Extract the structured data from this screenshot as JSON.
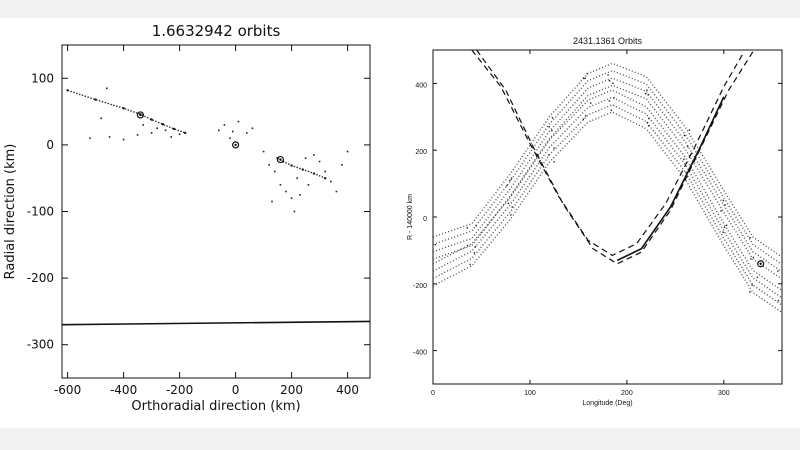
{
  "chart_data": [
    {
      "type": "scatter",
      "title": "1.6632942 orbits",
      "xlabel": "Orthoradial direction (km)",
      "ylabel": "Radial direction (km)",
      "xlim": [
        -620,
        480
      ],
      "ylim": [
        -350,
        150
      ],
      "xticks": [
        -600,
        -400,
        -200,
        0,
        200,
        400
      ],
      "yticks": [
        -300,
        -200,
        -100,
        0,
        100
      ],
      "grid": false,
      "series": [
        {
          "kind": "streak",
          "points": [
            [
              -600,
              82
            ],
            [
              -500,
              68
            ],
            [
              -400,
              55
            ],
            [
              -340,
              46
            ],
            [
              -300,
              38
            ],
            [
              -260,
              31
            ],
            [
              -220,
              24
            ],
            [
              -180,
              18
            ]
          ]
        },
        {
          "kind": "streak",
          "points": [
            [
              150,
              -20
            ],
            [
              170,
              -25
            ],
            [
              200,
              -31
            ],
            [
              240,
              -37
            ],
            [
              280,
              -43
            ],
            [
              320,
              -50
            ]
          ]
        },
        {
          "kind": "scatter",
          "points": [
            [
              -520,
              10
            ],
            [
              -450,
              12
            ],
            [
              -400,
              8
            ],
            [
              -350,
              15
            ],
            [
              -300,
              18
            ],
            [
              -250,
              22
            ],
            [
              -200,
              16
            ],
            [
              -330,
              30
            ],
            [
              -280,
              25
            ],
            [
              -230,
              12
            ],
            [
              -60,
              22
            ],
            [
              -40,
              30
            ],
            [
              10,
              35
            ],
            [
              -20,
              10
            ],
            [
              40,
              18
            ],
            [
              60,
              25
            ],
            [
              -10,
              20
            ],
            [
              100,
              -10
            ],
            [
              120,
              -30
            ],
            [
              140,
              -40
            ],
            [
              160,
              -60
            ],
            [
              180,
              -70
            ],
            [
              200,
              -80
            ],
            [
              220,
              -50
            ],
            [
              250,
              -20
            ],
            [
              280,
              -15
            ],
            [
              300,
              -25
            ],
            [
              320,
              -40
            ],
            [
              340,
              -55
            ],
            [
              360,
              -70
            ],
            [
              380,
              -30
            ],
            [
              400,
              -10
            ],
            [
              260,
              -60
            ],
            [
              230,
              -75
            ],
            [
              210,
              -100
            ],
            [
              130,
              -85
            ],
            [
              -460,
              85
            ],
            [
              -480,
              40
            ]
          ]
        },
        {
          "kind": "line",
          "points": [
            [
              -620,
              -270
            ],
            [
              480,
              -265
            ]
          ]
        }
      ],
      "markers": [
        [
          0,
          0
        ],
        [
          -340,
          45
        ],
        [
          160,
          -22
        ]
      ]
    },
    {
      "type": "scatter",
      "title": "2431.1361 Orbits",
      "xlabel": "Longitude (Deg)",
      "ylabel": "R - 140000 km",
      "xlim": [
        0,
        360
      ],
      "ylim": [
        -500,
        500
      ],
      "xticks": [
        0,
        100,
        200,
        300
      ],
      "yticks": [
        -400,
        -200,
        0,
        200,
        400
      ],
      "grid": false,
      "series": [
        {
          "kind": "dashed",
          "points": [
            [
              40,
              500
            ],
            [
              70,
              390
            ],
            [
              100,
              220
            ],
            [
              130,
              60
            ],
            [
              160,
              -70
            ],
            [
              185,
              -115
            ],
            [
              210,
              -80
            ],
            [
              240,
              40
            ],
            [
              270,
              210
            ],
            [
              300,
              390
            ],
            [
              320,
              490
            ]
          ]
        },
        {
          "kind": "dashed",
          "points": [
            [
              45,
              500
            ],
            [
              75,
              380
            ],
            [
              105,
              200
            ],
            [
              135,
              35
            ],
            [
              165,
              -95
            ],
            [
              190,
              -140
            ],
            [
              215,
              -105
            ],
            [
              245,
              20
            ],
            [
              275,
              200
            ],
            [
              305,
              380
            ],
            [
              330,
              495
            ]
          ]
        },
        {
          "kind": "solid",
          "points": [
            [
              190,
              -130
            ],
            [
              215,
              -95
            ],
            [
              245,
              30
            ],
            [
              275,
              205
            ],
            [
              300,
              360
            ]
          ]
        },
        {
          "kind": "band",
          "points": [
            [
              0,
              -60
            ],
            [
              40,
              -20
            ],
            [
              80,
              130
            ],
            [
              120,
              300
            ],
            [
              160,
              430
            ],
            [
              185,
              460
            ],
            [
              220,
              420
            ],
            [
              260,
              270
            ],
            [
              300,
              80
            ],
            [
              330,
              -60
            ],
            [
              360,
              -120
            ]
          ]
        },
        {
          "kind": "band",
          "points": [
            [
              0,
              -140
            ],
            [
              40,
              -80
            ],
            [
              80,
              60
            ],
            [
              120,
              230
            ],
            [
              160,
              350
            ],
            [
              185,
              380
            ],
            [
              220,
              330
            ],
            [
              260,
              180
            ],
            [
              300,
              -20
            ],
            [
              330,
              -160
            ],
            [
              360,
              -220
            ]
          ]
        }
      ],
      "markers": [
        [
          338,
          -140
        ]
      ]
    }
  ]
}
